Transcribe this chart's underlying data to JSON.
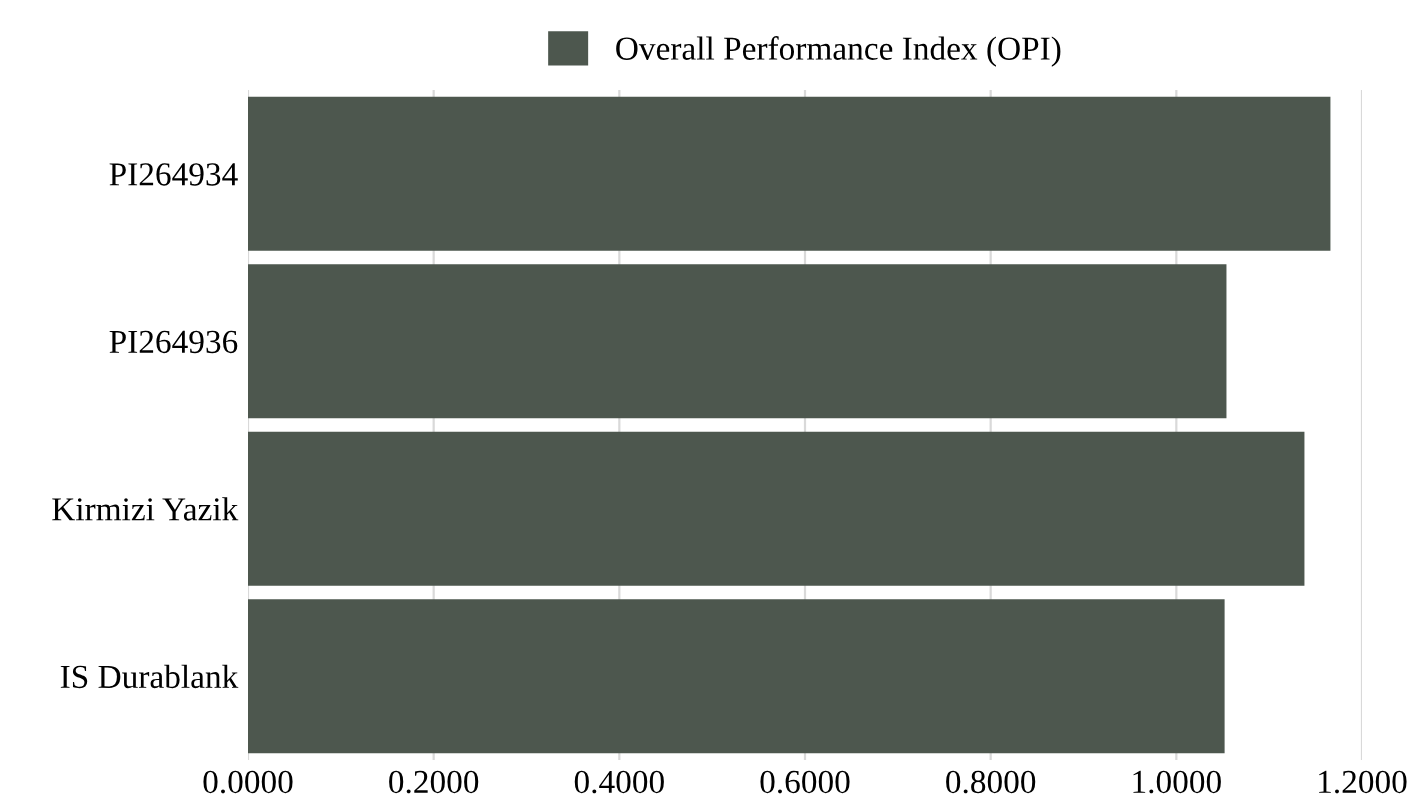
{
  "chart_data": {
    "type": "bar",
    "orientation": "horizontal",
    "categories": [
      "PI264934",
      "PI264936",
      "Kirmizi Yazik",
      "IS Durablank"
    ],
    "series": [
      {
        "name": "Overall Performance Index (OPI)",
        "color": "#4d574e",
        "values": [
          1.166,
          1.054,
          1.138,
          1.052
        ]
      }
    ],
    "xlim": [
      0,
      1.2
    ],
    "xticks": [
      {
        "value": 0,
        "label": "0.0000"
      },
      {
        "value": 0.2,
        "label": "0.2000"
      },
      {
        "value": 0.4,
        "label": "0.4000"
      },
      {
        "value": 0.6,
        "label": "0.6000"
      },
      {
        "value": 0.8,
        "label": "0.8000"
      },
      {
        "value": 1.0,
        "label": "1.0000"
      },
      {
        "value": 1.2,
        "label": "1.2000"
      }
    ],
    "grid": "x",
    "legend": "top"
  }
}
